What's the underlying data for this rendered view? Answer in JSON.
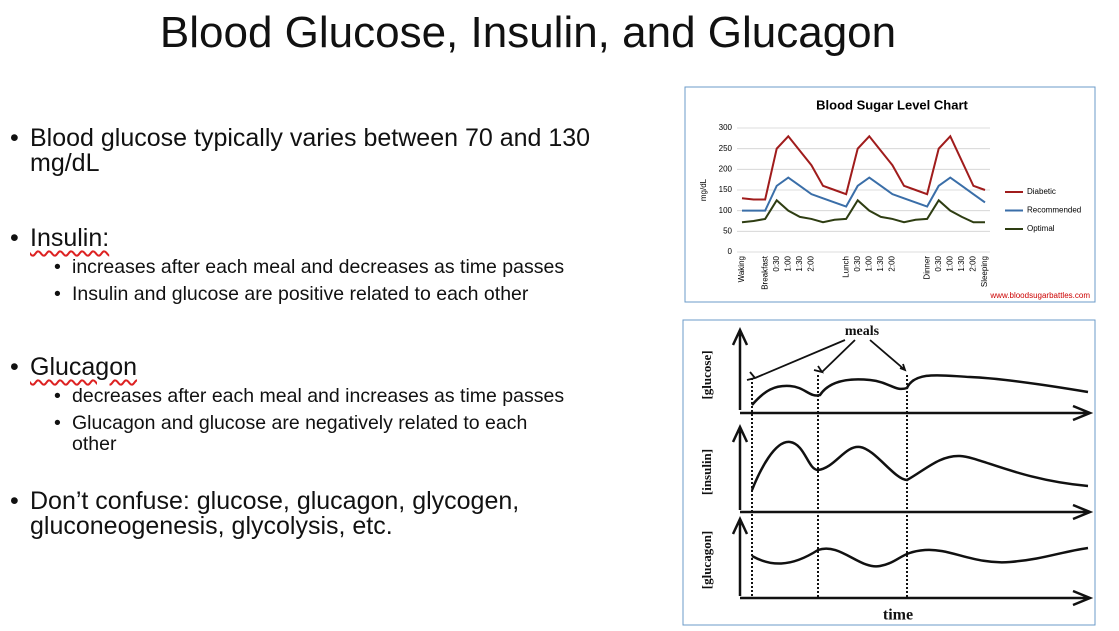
{
  "slide": {
    "title": "Blood Glucose, Insulin, and Glucagon",
    "bullets": [
      {
        "text": "Blood glucose typically varies between 70 and 130 mg/dL"
      },
      {
        "text": "Insulin:",
        "sub": [
          "increases after each meal and decreases as time passes",
          "Insulin and glucose are positive related to each other"
        ]
      },
      {
        "text": "Glucagon",
        "sub": [
          "decreases after each meal and increases as time passes",
          "Glucagon and glucose are negatively related to each other"
        ]
      },
      {
        "text": "Don’t confuse: glucose, glucagon, glycogen, gluconeogenesis, glycolysis, etc."
      }
    ]
  },
  "chart_data": {
    "type": "line",
    "title": "Blood Sugar Level Chart",
    "y_label": "mg/dL",
    "source": "www.bloodsugarbattles.com",
    "categories": [
      "Waking",
      null,
      "Breakfast",
      "0:30",
      "1:00",
      "1:30",
      "2:00",
      null,
      null,
      "Lunch",
      "0:30",
      "1:00",
      "1:30",
      "2:00",
      null,
      null,
      "Dinner",
      "0:30",
      "1:00",
      "1:30",
      "2:00",
      "Sleeping"
    ],
    "series": [
      {
        "name": "Diabetic",
        "color": "#a01c1c",
        "values": [
          130,
          127,
          127,
          250,
          280,
          245,
          210,
          160,
          150,
          140,
          250,
          280,
          245,
          210,
          160,
          150,
          140,
          250,
          280,
          220,
          160,
          150
        ]
      },
      {
        "name": "Recommended",
        "color": "#3a6ea8",
        "values": [
          100,
          100,
          100,
          160,
          180,
          160,
          140,
          130,
          120,
          110,
          160,
          180,
          160,
          140,
          130,
          120,
          110,
          160,
          180,
          160,
          140,
          120
        ]
      },
      {
        "name": "Optimal",
        "color": "#2e3d12",
        "values": [
          72,
          75,
          80,
          125,
          100,
          85,
          80,
          72,
          78,
          80,
          125,
          100,
          85,
          80,
          72,
          78,
          80,
          125,
          100,
          85,
          72,
          72
        ]
      }
    ],
    "ylim": [
      0,
      300
    ],
    "yticks": [
      0,
      50,
      100,
      150,
      200,
      250,
      300
    ],
    "grid": true
  },
  "diagram": {
    "top_label": "meals",
    "axis_labels": [
      "[glucose]",
      "[insulin]",
      "[glucagon]"
    ],
    "x_label": "time"
  }
}
